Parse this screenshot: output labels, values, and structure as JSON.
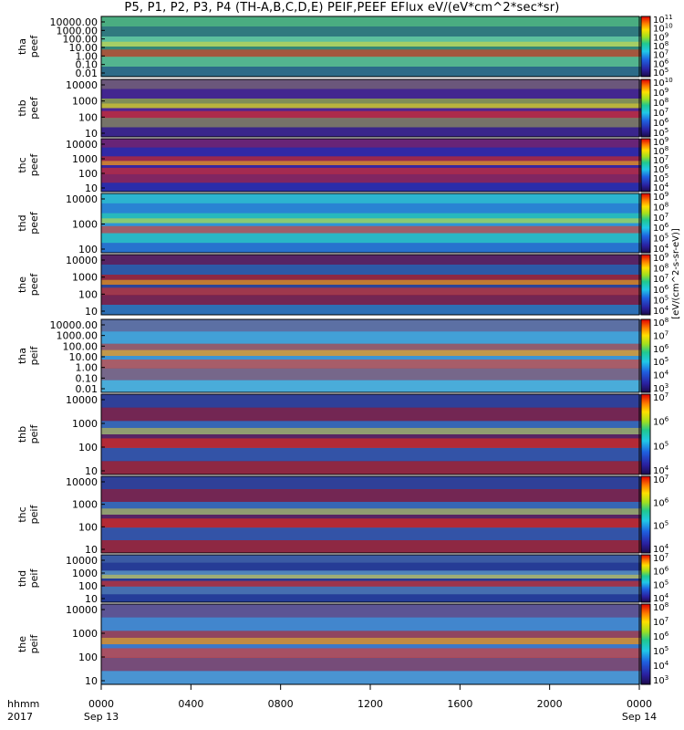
{
  "title": "P5, P1, P2, P3, P4 (TH-A,B,C,D,E) PEIF,PEEF EFlux eV/(eV*cm^2*sec*sr)",
  "colorbar_unit": "[eV/(cm^2-s-sr-eV)]",
  "x_axis": {
    "row_label_time": "hhmm",
    "row_label_year": "2017",
    "ticks": [
      "0000",
      "0400",
      "0800",
      "1200",
      "1600",
      "2000",
      "0000"
    ],
    "tick_dates": [
      "Sep 13",
      "",
      "",
      "",
      "",
      "",
      "Sep 14"
    ]
  },
  "chart_data": [
    {
      "type": "heatmap",
      "probe": "tha",
      "quantity": "peef",
      "ylabel": [
        "tha",
        "peef"
      ],
      "yticks": [
        "10000.00",
        "1000.00",
        "100.00",
        "10.00",
        "1.00",
        "0.10",
        "0.01"
      ],
      "cbar_ticks": [
        "10^11",
        "10^10",
        "10^9",
        "10^8",
        "10^7",
        "10^6",
        "10^5"
      ],
      "colors": {
        "bg": "#3b9f6a",
        "low": "#78d8c8",
        "high": "#2040a0"
      }
    },
    {
      "type": "heatmap",
      "probe": "thb",
      "quantity": "peef",
      "ylabel": [
        "thb",
        "peef"
      ],
      "yticks": [
        "10000",
        "1000",
        "100",
        "10"
      ],
      "cbar_ticks": [
        "10^10",
        "10^9",
        "10^8",
        "10^7",
        "10^6",
        "10^5"
      ],
      "colors": {
        "bg": "#5a2a9a",
        "low": "#9fe020",
        "high": "#202080"
      }
    },
    {
      "type": "heatmap",
      "probe": "thc",
      "quantity": "peef",
      "ylabel": [
        "thc",
        "peef"
      ],
      "yticks": [
        "10000",
        "1000",
        "100",
        "10"
      ],
      "cbar_ticks": [
        "10^9",
        "10^8",
        "10^7",
        "10^6",
        "10^5",
        "10^4"
      ],
      "colors": {
        "bg": "#40209a",
        "low": "#e03010",
        "high": "#1838b8"
      }
    },
    {
      "type": "heatmap",
      "probe": "thd",
      "quantity": "peef",
      "ylabel": [
        "thd",
        "peef"
      ],
      "yticks": [
        "10000",
        "1000",
        "100"
      ],
      "cbar_ticks": [
        "10^9",
        "10^8",
        "10^7",
        "10^6",
        "10^5",
        "10^4"
      ],
      "colors": {
        "bg": "#30b0e0",
        "low": "#20c0a0",
        "high": "#2040c0"
      }
    },
    {
      "type": "heatmap",
      "probe": "the",
      "quantity": "peef",
      "ylabel": [
        "the",
        "peef"
      ],
      "yticks": [
        "10000",
        "1000",
        "100",
        "10"
      ],
      "cbar_ticks": [
        "10^9",
        "10^8",
        "10^7",
        "10^6",
        "10^5",
        "10^4"
      ],
      "colors": {
        "bg": "#2a2080",
        "low": "#e03010",
        "high": "#30b0e0"
      }
    },
    {
      "type": "heatmap",
      "probe": "tha",
      "quantity": "peif",
      "ylabel": [
        "tha",
        "peif"
      ],
      "yticks": [
        "10000.00",
        "1000.00",
        "100.00",
        "10.00",
        "1.00",
        "0.10",
        "0.01"
      ],
      "cbar_ticks": [
        "10^8",
        "10^7",
        "10^6",
        "10^5",
        "10^4",
        "10^3"
      ],
      "colors": {
        "bg": "#3080d0",
        "low": "#e04020",
        "high": "#60d0e0"
      }
    },
    {
      "type": "heatmap",
      "probe": "thb",
      "quantity": "peif",
      "ylabel": [
        "thb",
        "peif"
      ],
      "yticks": [
        "10000",
        "1000",
        "100",
        "10"
      ],
      "cbar_ticks": [
        "10^7",
        "10^6",
        "10^5",
        "10^4"
      ],
      "colors": {
        "bg": "#2a2080",
        "low": "#40a0e0",
        "high": "#e03010"
      }
    },
    {
      "type": "heatmap",
      "probe": "thc",
      "quantity": "peif",
      "ylabel": [
        "thc",
        "peif"
      ],
      "yticks": [
        "10000",
        "1000",
        "100",
        "10"
      ],
      "cbar_ticks": [
        "10^7",
        "10^6",
        "10^5",
        "10^4"
      ],
      "colors": {
        "bg": "#2a2080",
        "low": "#40a0e0",
        "high": "#e03010"
      }
    },
    {
      "type": "heatmap",
      "probe": "thd",
      "quantity": "peif",
      "ylabel": [
        "thd",
        "peif"
      ],
      "yticks": [
        "10000",
        "1000",
        "100",
        "10"
      ],
      "cbar_ticks": [
        "10^7",
        "10^6",
        "10^5",
        "10^4"
      ],
      "colors": {
        "bg": "#2a3a90",
        "low": "#70c0e0",
        "high": "#2040a0"
      }
    },
    {
      "type": "heatmap",
      "probe": "the",
      "quantity": "peif",
      "ylabel": [
        "the",
        "peif"
      ],
      "yticks": [
        "10000",
        "1000",
        "100",
        "10"
      ],
      "cbar_ticks": [
        "10^8",
        "10^7",
        "10^6",
        "10^5",
        "10^4",
        "10^3"
      ],
      "colors": {
        "bg": "#3060c0",
        "low": "#e03010",
        "high": "#60c0e0"
      }
    }
  ]
}
